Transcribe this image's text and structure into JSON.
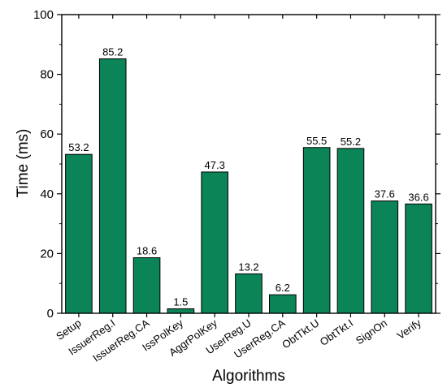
{
  "chart_data": {
    "type": "bar",
    "title": "",
    "xlabel": "Algorithms",
    "ylabel": "Time (ms)",
    "ylim": [
      0,
      100
    ],
    "yticks": [
      0,
      20,
      40,
      60,
      80,
      100
    ],
    "grid": false,
    "bar_color": "#0b8457",
    "categories": [
      "Setup",
      "IssuerReg.I",
      "IssuerReg.CA",
      "IssPolKey",
      "AggrPolKey",
      "UserReg.U",
      "UserReg.CA",
      "ObtTkt.U",
      "ObtTkt.I",
      "SignOn",
      "Verify"
    ],
    "values": [
      53.2,
      85.2,
      18.6,
      1.5,
      47.3,
      13.2,
      6.2,
      55.5,
      55.2,
      37.6,
      36.6
    ],
    "value_labels": [
      "53.2",
      "85.2",
      "18.6",
      "1.5",
      "47.3",
      "13.2",
      "6.2",
      "55.5",
      "55.2",
      "37.6",
      "36.6"
    ]
  }
}
